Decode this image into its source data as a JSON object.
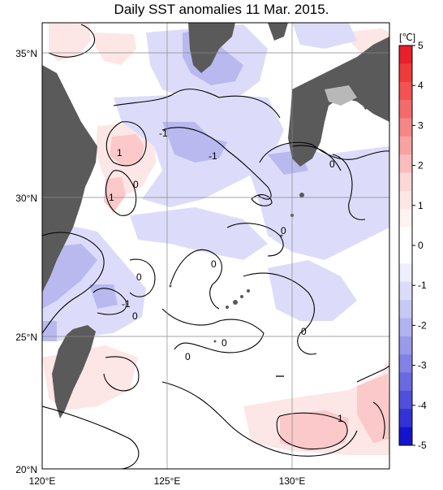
{
  "title": "Daily SST anomalies 11 Mar. 2015.",
  "colorbar": {
    "unit": "[℃]",
    "ticks": [
      "5",
      "4",
      "3",
      "2",
      "1",
      "0",
      "-1",
      "-2",
      "-3",
      "-4",
      "-5"
    ],
    "colors_top_to_bottom": [
      "#e8202a",
      "#ee3a3a",
      "#f25252",
      "#f56b6b",
      "#f78787",
      "#f9a2a2",
      "#fbbcbc",
      "#fdd6d6",
      "#fde6e6",
      "#fff2f2",
      "#ffffff",
      "#ffffff",
      "#eeeeff",
      "#dcdcfa",
      "#c8c8f5",
      "#b2b2f0",
      "#9a9aeb",
      "#8282e6",
      "#6a6ae0",
      "#5050da",
      "#3232d5",
      "#1414d0"
    ]
  },
  "axes": {
    "lon_labels": [
      "120°E",
      "125°E",
      "130°E"
    ],
    "lat_labels": [
      "35°N",
      "30°N",
      "25°N",
      "20°N"
    ]
  },
  "contour_labels": [
    "1",
    "1",
    "-1",
    "-1",
    "0",
    "0",
    "0",
    "0",
    "0",
    "-1",
    "0",
    "0",
    "0",
    "1"
  ],
  "colors": {
    "land": "#5a5a5a",
    "land_light": "#b8b8b8",
    "grid": "#888888"
  }
}
